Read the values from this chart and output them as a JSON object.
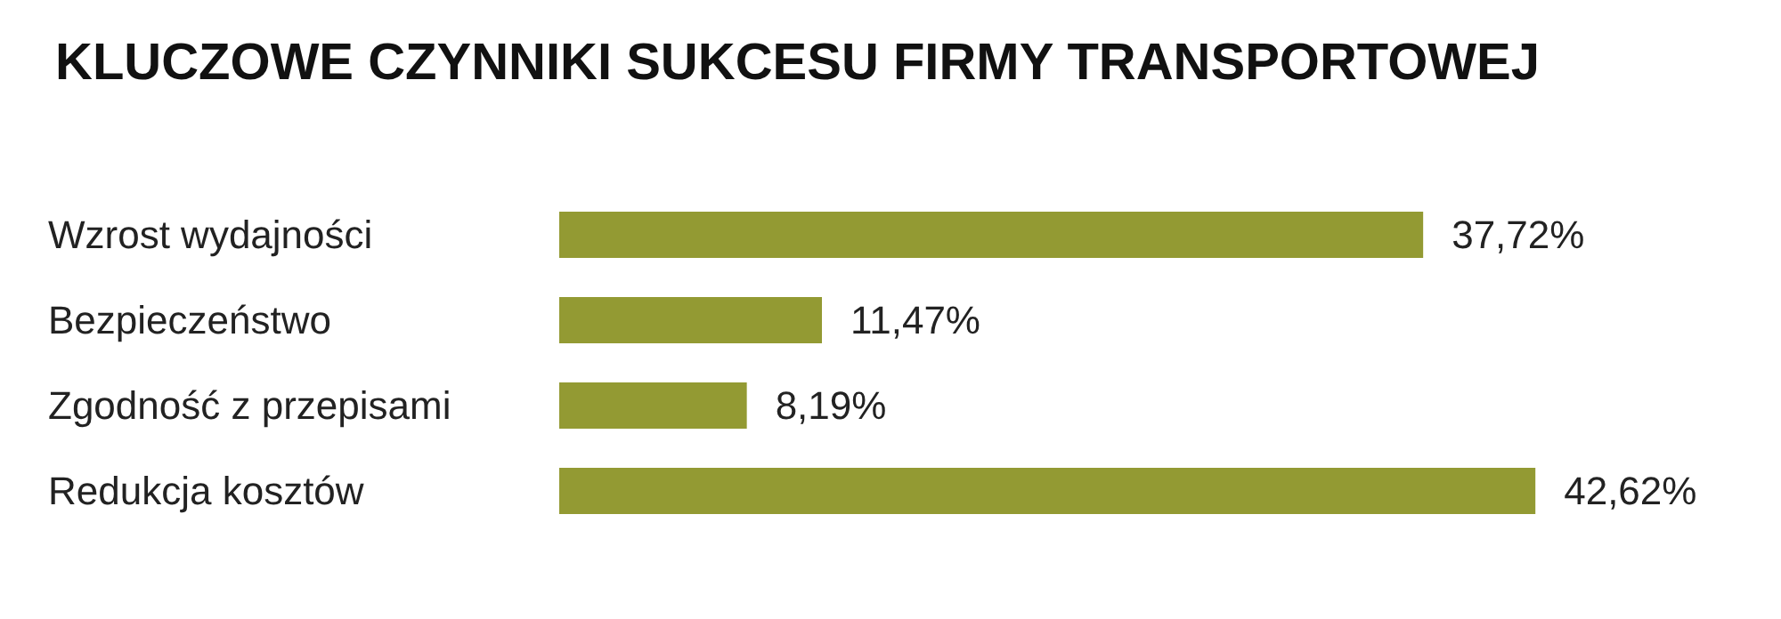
{
  "chart_data": {
    "type": "bar",
    "orientation": "horizontal",
    "title": "KLUCZOWE CZYNNIKI SUKCESU FIRMY TRANSPORTOWEJ",
    "categories": [
      "Wzrost wydajności",
      "Bezpieczeństwo",
      "Zgodność z przepisami",
      "Redukcja kosztów"
    ],
    "values": [
      37.72,
      11.47,
      8.19,
      42.62
    ],
    "value_labels": [
      "37,72%",
      "11,47%",
      "8,19%",
      "42,62%"
    ],
    "color": "#939a33",
    "grid": false
  }
}
